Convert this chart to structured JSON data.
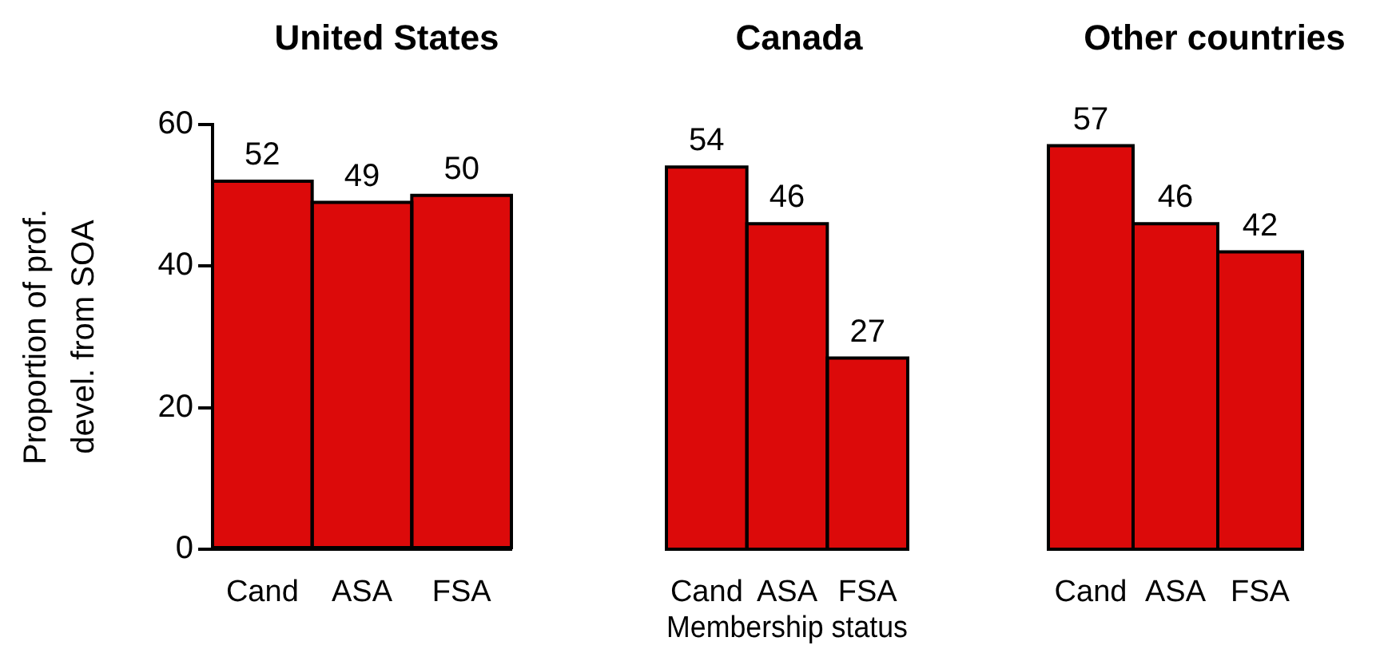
{
  "chart_data": [
    {
      "type": "bar",
      "title": "United States",
      "ylabel": "Proportion of prof.\ndevel. from SOA",
      "categories": [
        "Cand",
        "ASA",
        "FSA"
      ],
      "values": [
        52,
        49,
        50
      ],
      "color": "#dc0a0a",
      "ylim": [
        0,
        60
      ],
      "yticks": [
        0,
        20,
        40,
        60
      ],
      "data_labels": true
    },
    {
      "type": "bar",
      "title": "Canada",
      "xlabel": "Membership status",
      "categories": [
        "Cand",
        "ASA",
        "FSA"
      ],
      "values": [
        54,
        46,
        27
      ],
      "color": "#dc0a0a",
      "ylim": [
        0,
        60
      ],
      "data_labels": true,
      "tick_labels": "x"
    },
    {
      "type": "bar",
      "title": "Other countries",
      "categories": [
        "Cand",
        "ASA",
        "FSA"
      ],
      "values": [
        57,
        46,
        42
      ],
      "color": "#dc0a0a",
      "ylim": [
        0,
        60
      ],
      "data_labels": true,
      "tick_labels": "x"
    }
  ]
}
